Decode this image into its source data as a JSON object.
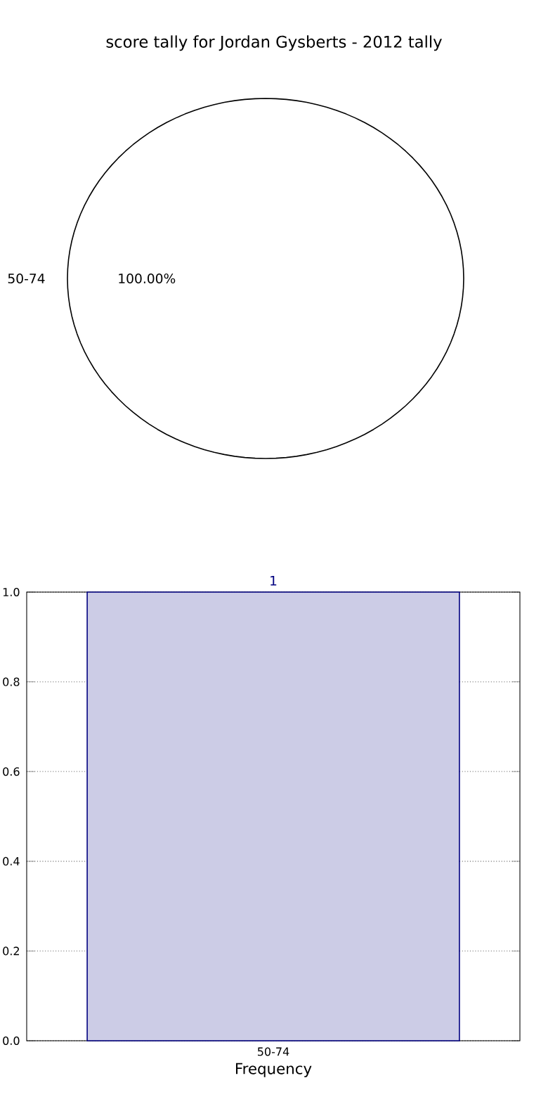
{
  "chart_data": [
    {
      "type": "pie",
      "title": "score tally for Jordan Gysberts - 2012 tally",
      "categories": [
        "50-74"
      ],
      "values": [
        100
      ],
      "colors": [
        "#ffffff"
      ],
      "value_labels": [
        "100.00%"
      ]
    },
    {
      "type": "bar",
      "xlabel": "Frequency",
      "categories": [
        "50-74"
      ],
      "values": [
        1
      ],
      "color": "#ccccE6",
      "data_labels": true,
      "grid": true,
      "ylim": [
        0,
        1
      ],
      "yticks": [
        {
          "value": 0,
          "label": "0.0"
        },
        {
          "value": 0.2,
          "label": "0.2"
        },
        {
          "value": 0.4,
          "label": "0.4"
        },
        {
          "value": 0.6,
          "label": "0.6"
        },
        {
          "value": 0.8,
          "label": "0.8"
        },
        {
          "value": 1,
          "label": "1.0"
        }
      ]
    }
  ]
}
